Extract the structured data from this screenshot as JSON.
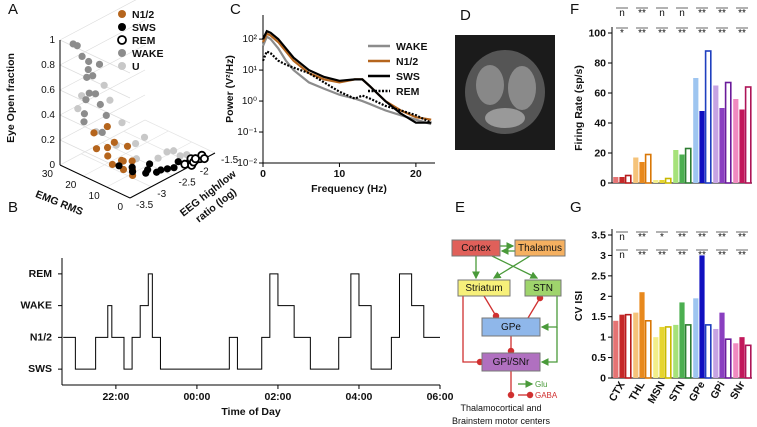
{
  "chart_data": [
    {
      "type": "scatter3d",
      "panel": "A",
      "zlabel": "Eye Open fraction",
      "ylabel": "EMG RMS",
      "xlabel": [
        "EEG high/low",
        "ratio (log)"
      ],
      "xlim": [
        -3.5,
        -1.5
      ],
      "xticks": [
        -3.5,
        -3,
        -2.5,
        -2,
        -1.5
      ],
      "ylim": [
        0,
        30
      ],
      "yticks": [
        0,
        10,
        20,
        30
      ],
      "zlim": [
        0,
        1
      ],
      "zticks": [
        0,
        0.2,
        0.4,
        0.6,
        0.8,
        1
      ],
      "series": [
        {
          "name": "U",
          "color": "#c8c8c8",
          "x": [
            -3.2,
            -3.0,
            -2.8,
            -2.6,
            -2.4,
            -2.2,
            -2.0,
            -3.1,
            -2.7,
            -2.5,
            -2.9,
            -2.3,
            -3.3,
            -2.6,
            -2.1
          ],
          "y": [
            20,
            15,
            10,
            25,
            8,
            5,
            3,
            28,
            18,
            12,
            22,
            6,
            26,
            14,
            4
          ],
          "z": [
            0.3,
            0.2,
            0.1,
            0.4,
            0.05,
            0.1,
            0.05,
            0.5,
            0.3,
            0.2,
            0.6,
            0.1,
            0.45,
            0.15,
            0.05
          ]
        },
        {
          "name": "WAKE",
          "color": "#8c8c8c",
          "x": [
            -3.3,
            -3.2,
            -3.1,
            -3.0,
            -2.9,
            -3.25,
            -3.15,
            -3.05,
            -2.95,
            -3.1,
            -3.2,
            -3.0,
            -2.85,
            -3.1,
            -3.0,
            -3.2
          ],
          "y": [
            28,
            26,
            25,
            27,
            24,
            22,
            29,
            23,
            26,
            20,
            25,
            28,
            22,
            27,
            21,
            24
          ],
          "z": [
            0.95,
            0.85,
            0.8,
            0.7,
            0.75,
            0.6,
            0.9,
            0.55,
            0.65,
            0.5,
            0.4,
            0.45,
            0.35,
            0.3,
            0.25,
            0.7
          ]
        },
        {
          "name": "N1/2",
          "color": "#b5651d",
          "x": [
            -3.3,
            -3.2,
            -3.1,
            -3.0,
            -2.9,
            -3.25,
            -3.15,
            -3.05,
            -2.95,
            -3.1,
            -3.0,
            -3.2,
            -2.9,
            -3.15
          ],
          "y": [
            18,
            15,
            14,
            12,
            10,
            20,
            16,
            11,
            9,
            17,
            8,
            13,
            12,
            10
          ],
          "z": [
            0.2,
            0.15,
            0.25,
            0.1,
            0.1,
            0.3,
            0.2,
            0.05,
            0.05,
            0.35,
            0.02,
            0.1,
            0.2,
            0.15
          ]
        },
        {
          "name": "SWS",
          "color": "#000000",
          "x": [
            -3.0,
            -2.8,
            -2.6,
            -2.4,
            -2.2,
            -2.0,
            -1.9,
            -2.9,
            -2.7,
            -2.5,
            -2.3,
            -2.1,
            -3.1,
            -2.6
          ],
          "y": [
            8,
            6,
            5,
            4,
            3,
            2,
            1,
            10,
            7,
            5,
            3,
            2,
            12,
            8
          ],
          "z": [
            0.05,
            0.02,
            0,
            0,
            0.03,
            0,
            0,
            0.05,
            0.02,
            0,
            0,
            0,
            0.08,
            0.04
          ]
        },
        {
          "name": "REM",
          "color": "#000000",
          "open": true,
          "x": [
            -2.1,
            -2.0,
            -1.9,
            -1.8,
            -1.7,
            -2.05,
            -1.95,
            -1.85,
            -1.75
          ],
          "y": [
            2,
            1,
            3,
            1,
            2,
            0,
            1,
            2,
            0
          ],
          "z": [
            0,
            0,
            0,
            0,
            0,
            0,
            0,
            0,
            0
          ]
        }
      ],
      "legend_order": [
        2,
        3,
        4,
        1,
        0
      ]
    },
    {
      "type": "step",
      "panel": "B",
      "xlabel": "Time of Day",
      "color": "#000000",
      "ycategories": [
        "REM",
        "WAKE",
        "N1/2",
        "SWS"
      ],
      "xlim": [
        20.67,
        30
      ],
      "xticks": [
        {
          "value": 22,
          "label": "22:00"
        },
        {
          "value": 24,
          "label": "00:00"
        },
        {
          "value": 26,
          "label": "02:00"
        },
        {
          "value": 28,
          "label": "04:00"
        },
        {
          "value": 30,
          "label": "06:00"
        }
      ],
      "x": [
        20.7,
        21.0,
        21.0,
        21.5,
        21.5,
        21.8,
        21.8,
        21.9,
        21.9,
        22.2,
        22.2,
        22.4,
        22.4,
        22.6,
        22.6,
        22.8,
        22.8,
        22.9,
        22.9,
        23.1,
        23.1,
        24.8,
        24.8,
        25.0,
        25.0,
        25.6,
        25.6,
        25.8,
        25.8,
        26.0,
        26.0,
        26.4,
        26.4,
        26.8,
        26.8,
        27.5,
        27.5,
        27.8,
        27.8,
        28.0,
        28.0,
        28.3,
        28.3,
        28.8,
        28.8,
        29.0,
        29.0,
        29.3,
        29.3,
        29.6,
        29.6,
        30.0
      ],
      "values": [
        "N1/2",
        "N1/2",
        "SWS",
        "SWS",
        "N1/2",
        "N1/2",
        "WAKE",
        "WAKE",
        "N1/2",
        "N1/2",
        "SWS",
        "SWS",
        "N1/2",
        "N1/2",
        "WAKE",
        "WAKE",
        "REM",
        "REM",
        "N1/2",
        "N1/2",
        "SWS",
        "SWS",
        "N1/2",
        "N1/2",
        "SWS",
        "SWS",
        "N1/2",
        "N1/2",
        "REM",
        "REM",
        "WAKE",
        "WAKE",
        "N1/2",
        "N1/2",
        "SWS",
        "SWS",
        "N1/2",
        "N1/2",
        "REM",
        "REM",
        "WAKE",
        "WAKE",
        "SWS",
        "SWS",
        "N1/2",
        "N1/2",
        "REM",
        "REM",
        "WAKE",
        "WAKE",
        "N1/2",
        "N1/2"
      ]
    },
    {
      "type": "line",
      "panel": "C",
      "xlabel": "Frequency (Hz)",
      "ylabel": "Power (V²/Hz)",
      "log_y": true,
      "xlim": [
        0,
        22.5
      ],
      "xticks": [
        0,
        10,
        20
      ],
      "ylim": [
        0.01,
        600
      ],
      "yticks": [
        {
          "value": 0.01,
          "label": "10⁻²"
        },
        {
          "value": 0.1,
          "label": "10⁻¹"
        },
        {
          "value": 1,
          "label": "10⁰"
        },
        {
          "value": 10,
          "label": "10¹"
        },
        {
          "value": 100,
          "label": "10²"
        }
      ],
      "x": [
        0,
        0.5,
        1,
        2,
        3,
        4,
        6,
        8,
        10,
        12,
        13,
        14,
        16,
        18,
        20,
        22
      ],
      "series": [
        {
          "name": "WAKE",
          "color": "#8c8c8c",
          "values": [
            60,
            120,
            100,
            50,
            20,
            10,
            4,
            2.5,
            1.6,
            1.2,
            1.0,
            0.8,
            0.5,
            0.35,
            0.25,
            0.18
          ]
        },
        {
          "name": "N1/2",
          "color": "#b5651d",
          "values": [
            80,
            150,
            130,
            80,
            40,
            20,
            8,
            5,
            4,
            5,
            5,
            3,
            1,
            0.5,
            0.3,
            0.25
          ]
        },
        {
          "name": "SWS",
          "color": "#000000",
          "values": [
            100,
            180,
            160,
            100,
            50,
            25,
            10,
            6,
            4.5,
            5,
            5,
            3,
            1,
            0.4,
            0.2,
            0.2
          ]
        },
        {
          "name": "REM",
          "color": "#000000",
          "dash": true,
          "values": [
            20,
            40,
            35,
            20,
            15,
            12,
            8,
            4,
            2,
            1.2,
            1.5,
            1.2,
            0.7,
            0.5,
            0.35,
            0.2
          ]
        }
      ]
    },
    {
      "type": "bar",
      "panel": "F",
      "ylabel": "Firing Rate (sp/s)",
      "ylim": [
        0,
        100
      ],
      "yticks": [
        0,
        20,
        40,
        60,
        80,
        100
      ],
      "significance": [
        [
          "n",
          "**",
          "n",
          "n",
          "**",
          "**",
          "**"
        ],
        [
          "*",
          "**",
          "**",
          "**",
          "**",
          "**",
          "**"
        ]
      ],
      "series": [
        {
          "colors": [
            "#e57373",
            "#f5c37a",
            "#f2ee8a",
            "#a6e27a",
            "#9ec5f0",
            "#c6a3e3",
            "#f08ac0"
          ],
          "values": [
            4,
            17,
            2,
            22,
            70,
            65,
            56
          ]
        },
        {
          "colors": [
            "#c62828",
            "#e8891d",
            "#e6d52e",
            "#4caf50",
            "#1010c0",
            "#8a3fc0",
            "#c2185b"
          ],
          "values": [
            4,
            14,
            2,
            19,
            48,
            50,
            49
          ]
        },
        {
          "colors": [
            "#b71c1c",
            "#d97706",
            "#c9b800",
            "#2e7d32",
            "#1f3fbf",
            "#6a1b9a",
            "#ad1457"
          ],
          "outline": true,
          "values": [
            5,
            19,
            3,
            23,
            88,
            67,
            64
          ]
        }
      ]
    },
    {
      "type": "bar",
      "panel": "G",
      "ylabel": "CV ISI",
      "ylim": [
        0,
        3.5
      ],
      "yticks": [
        0,
        0.5,
        1,
        1.5,
        2,
        2.5,
        3,
        3.5
      ],
      "categories": [
        "CTX",
        "THL",
        "MSN",
        "STN",
        "GPe",
        "GPi",
        "SNr"
      ],
      "significance": [
        [
          "n",
          "**",
          "*",
          "**",
          "**",
          "**",
          "**"
        ],
        [
          "n",
          "**",
          "**",
          "**",
          "**",
          "**",
          "**"
        ]
      ],
      "series": [
        {
          "colors": [
            "#e57373",
            "#f5c37a",
            "#f2ee8a",
            "#a6e27a",
            "#9ec5f0",
            "#c6a3e3",
            "#f08ac0"
          ],
          "values": [
            1.4,
            1.6,
            1.0,
            1.3,
            1.95,
            1.2,
            0.85
          ]
        },
        {
          "colors": [
            "#c62828",
            "#e8891d",
            "#e6d52e",
            "#4caf50",
            "#1010c0",
            "#8a3fc0",
            "#c2185b"
          ],
          "values": [
            1.55,
            2.1,
            1.25,
            1.85,
            3.0,
            1.6,
            1.0
          ]
        },
        {
          "colors": [
            "#b71c1c",
            "#d97706",
            "#c9b800",
            "#2e7d32",
            "#1f3fbf",
            "#6a1b9a",
            "#ad1457"
          ],
          "outline": true,
          "values": [
            1.55,
            1.4,
            1.25,
            1.3,
            1.3,
            0.95,
            0.8
          ]
        }
      ]
    }
  ],
  "image": {
    "panel": "D"
  },
  "diagram": {
    "panel": "E",
    "nodes": [
      {
        "label": "Cortex"
      },
      {
        "label": "Thalamus"
      },
      {
        "label": "Striatum"
      },
      {
        "label": "STN"
      },
      {
        "label": "GPe"
      },
      {
        "label": "GPi/SNr"
      }
    ],
    "legend": [
      "Glu",
      "GABA"
    ],
    "caption": [
      "Thalamocortical and",
      "Brainstem motor centers"
    ]
  }
}
